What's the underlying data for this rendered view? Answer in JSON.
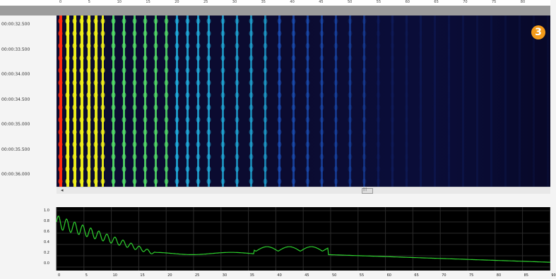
{
  "window": {
    "badge": "3"
  },
  "spectrogram": {
    "time_labels": [
      "00:00:32.500",
      "00:00:33.500",
      "00:00:34.000",
      "00:00:34.500",
      "00:00:35.000",
      "00:00:35.500",
      "00:00:36.000"
    ],
    "top_ticks": [
      "0",
      "5",
      "10",
      "15",
      "20",
      "25",
      "30",
      "35",
      "40",
      "45",
      "50",
      "55",
      "60",
      "65",
      "70",
      "75",
      "80"
    ],
    "scroll_label": "|||",
    "colors": {
      "low": "#0a0a2e",
      "mid": "#1f5fd6",
      "high": "#f2f21a",
      "peak": "#ff2a10"
    }
  },
  "lower_plot": {
    "y_labels": [
      "1.0",
      "0.8",
      "0.6",
      "0.4",
      "0.2",
      "0.0"
    ],
    "x_labels": [
      "0",
      "5",
      "10",
      "15",
      "20",
      "25",
      "30",
      "35",
      "40",
      "45",
      "50",
      "55",
      "60",
      "65",
      "70",
      "75",
      "80",
      "85",
      "90"
    ],
    "line_color": "#2ed12e",
    "grid_color": "#2a2a2a"
  }
}
